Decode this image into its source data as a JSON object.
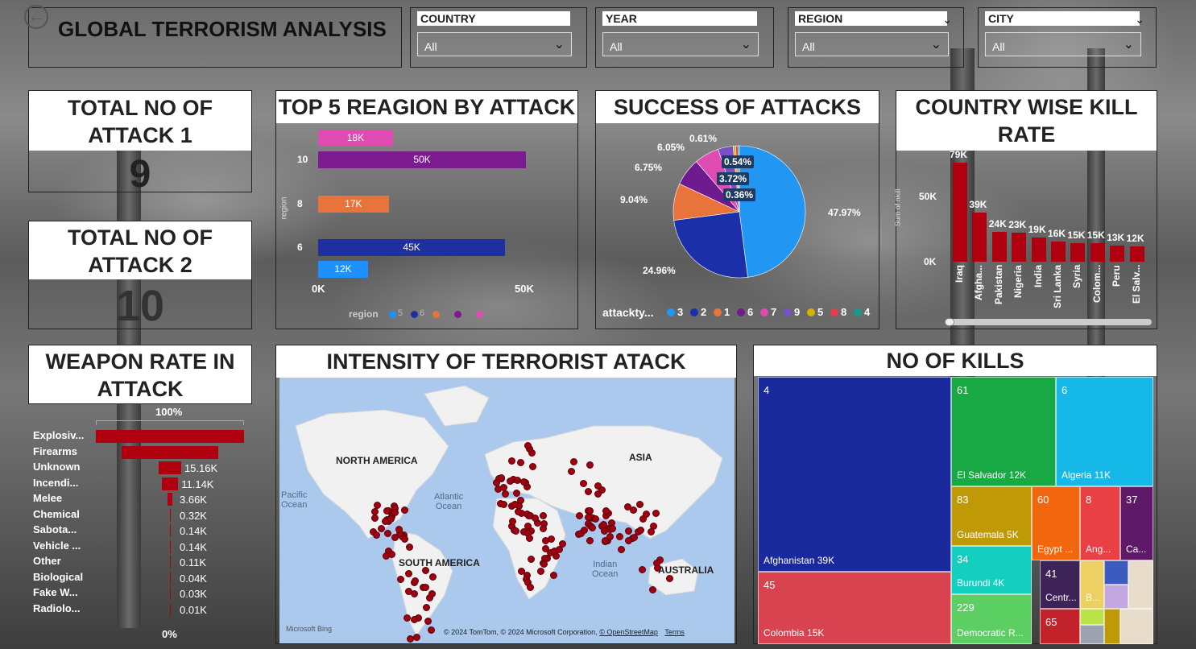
{
  "header": {
    "title": "GLOBAL TERRORISM ANALYSIS",
    "back_icon": "back-arrow-icon"
  },
  "slicers": [
    {
      "label": "COUNTRY",
      "value": "All"
    },
    {
      "label": "YEAR",
      "value": "All"
    },
    {
      "label": "REGION",
      "value": "All"
    },
    {
      "label": "CITY",
      "value": "All"
    }
  ],
  "cards": {
    "attack1": {
      "title": "TOTAL NO OF ATTACK 1",
      "value": "9"
    },
    "attack2": {
      "title": "TOTAL NO OF ATTACK 2",
      "value": "10"
    }
  },
  "top_regions": {
    "title": "TOP 5 REAGION BY ATTACK",
    "ylabel": "region",
    "xticks": [
      "0K",
      "50K"
    ],
    "legend_title": "region",
    "legend_items": [
      "5",
      "6",
      "",
      "",
      ""
    ],
    "legend_colors": [
      "#1e90ff",
      "#1f2fa0",
      "#e8743b",
      "#7b1b8f",
      "#e04bb1"
    ]
  },
  "success": {
    "title": "SUCCESS OF ATTACKS",
    "legend_title": "attackty...",
    "legend": [
      {
        "name": "3",
        "color": "#2196f3"
      },
      {
        "name": "2",
        "color": "#1a2fa8"
      },
      {
        "name": "1",
        "color": "#e8743b"
      },
      {
        "name": "6",
        "color": "#6e1b8f"
      },
      {
        "name": "7",
        "color": "#e04bb1"
      },
      {
        "name": "9",
        "color": "#7a4fc9"
      },
      {
        "name": "5",
        "color": "#d4b106"
      },
      {
        "name": "8",
        "color": "#e83b4b"
      },
      {
        "name": "4",
        "color": "#149c8c"
      }
    ]
  },
  "kill_rate": {
    "title": "COUNTRY WISE KILL RATE",
    "ylabel": "Sum of nkill",
    "yticks": [
      "50K",
      "0K"
    ]
  },
  "weapon": {
    "title": "WEAPON RATE IN ATTACK",
    "top_label": "100%",
    "bottom_label": "0%"
  },
  "map": {
    "title": "INTENSITY OF TERRORIST ATACK",
    "labels": {
      "na": "NORTH AMERICA",
      "sa": "SOUTH AMERICA",
      "asia": "ASIA",
      "aus": "AUSTRALIA",
      "pacific": "Pacific\nOcean",
      "atlantic": "Atlantic\nOcean",
      "indian": "Indian\nOcean"
    },
    "bing": "Microsoft Bing",
    "copyright": "© 2024 TomTom, © 2024 Microsoft Corporation,",
    "osm": "© OpenStreetMap",
    "terms": "Terms"
  },
  "kills": {
    "title": "NO OF KILLS"
  },
  "chart_data": [
    {
      "type": "bar",
      "title": "TOP 5 REAGION BY ATTACK",
      "ylabel": "region",
      "categories": [
        "",
        "10",
        "8",
        "6",
        ""
      ],
      "values": [
        18000,
        50000,
        17000,
        45000,
        12000
      ],
      "labels": [
        "18K",
        "50K",
        "17K",
        "45K",
        "12K"
      ],
      "colors": [
        "#e04bb1",
        "#7b1b8f",
        "#e8743b",
        "#1f2fa0",
        "#1e90ff"
      ],
      "xlim": [
        0,
        50000
      ]
    },
    {
      "type": "pie",
      "title": "SUCCESS OF ATTACKS",
      "slices": [
        {
          "name": "3",
          "value": 47.97,
          "label": "47.97%",
          "color": "#2196f3"
        },
        {
          "name": "2",
          "value": 24.96,
          "label": "24.96%",
          "color": "#1a2fa8"
        },
        {
          "name": "1",
          "value": 9.04,
          "label": "9.04%",
          "color": "#e8743b"
        },
        {
          "name": "6",
          "value": 6.75,
          "label": "6.75%",
          "color": "#6e1b8f"
        },
        {
          "name": "7",
          "value": 6.05,
          "label": "6.05%",
          "color": "#e04bb1"
        },
        {
          "name": "9",
          "value": 3.72,
          "label": "3.72%",
          "color": "#7a4fc9"
        },
        {
          "name": "5",
          "value": 0.61,
          "label": "0.61%",
          "color": "#d4b106"
        },
        {
          "name": "8",
          "value": 0.54,
          "label": "0.54%",
          "color": "#e83b4b"
        },
        {
          "name": "4",
          "value": 0.36,
          "label": "0.36%",
          "color": "#149c8c"
        }
      ]
    },
    {
      "type": "bar",
      "title": "COUNTRY WISE KILL RATE",
      "ylabel": "Sum of nkill",
      "categories": [
        "Iraq",
        "Afgha...",
        "Pakistan",
        "Nigeria",
        "India",
        "Sri Lanka",
        "Syria",
        "Colom...",
        "Peru",
        "El Salv..."
      ],
      "values": [
        79000,
        39000,
        24000,
        23000,
        19000,
        16000,
        15000,
        15000,
        13000,
        12000
      ],
      "labels": [
        "79K",
        "39K",
        "24K",
        "23K",
        "19K",
        "16K",
        "15K",
        "15K",
        "13K",
        "12K"
      ],
      "color": "#b00010",
      "ylim": [
        0,
        85000
      ]
    },
    {
      "type": "bar",
      "title": "WEAPON RATE IN ATTACK",
      "categories": [
        "Explosiv...",
        "Firearms",
        "Unknown",
        "Incendi...",
        "Melee",
        "Chemical",
        "Sabota...",
        "Vehicle ...",
        "Other",
        "Biological",
        "Fake W...",
        "Radiolo..."
      ],
      "values": [
        100,
        65,
        15.16,
        11.14,
        3.66,
        0.32,
        0.14,
        0.14,
        0.11,
        0.04,
        0.03,
        0.01
      ],
      "labels": [
        "",
        "",
        "15.16K",
        "11.14K",
        "3.66K",
        "0.32K",
        "0.14K",
        "0.14K",
        "0.11K",
        "0.04K",
        "0.03K",
        "0.01K"
      ],
      "color": "#b00010"
    },
    {
      "type": "table",
      "title": "NO OF KILLS",
      "cells": [
        {
          "code": "4",
          "name": "Afghanistan 39K",
          "color": "#1a2a9c"
        },
        {
          "code": "45",
          "name": "Colombia 15K",
          "color": "#d8434f"
        },
        {
          "code": "61",
          "name": "El Salvador 12K",
          "color": "#18a844"
        },
        {
          "code": "6",
          "name": "Algeria 11K",
          "color": "#16b8e8"
        },
        {
          "code": "83",
          "name": "Guatemala 5K",
          "color": "#c09a06"
        },
        {
          "code": "60",
          "name": "Egypt ...",
          "color": "#f2660e"
        },
        {
          "code": "8",
          "name": "Ang...",
          "color": "#e84045"
        },
        {
          "code": "37",
          "name": "Ca...",
          "color": "#5e1a68"
        },
        {
          "code": "34",
          "name": "Burundi 4K",
          "color": "#14cfc0"
        },
        {
          "code": "41",
          "name": "Centr...",
          "color": "#3e2358"
        },
        {
          "code": "229",
          "name": "Democratic R...",
          "color": "#5ccf63"
        },
        {
          "code": "65",
          "name": "",
          "color": "#c2222a"
        },
        {
          "code": "",
          "name": "B...",
          "color": "#ecd064"
        }
      ]
    }
  ]
}
